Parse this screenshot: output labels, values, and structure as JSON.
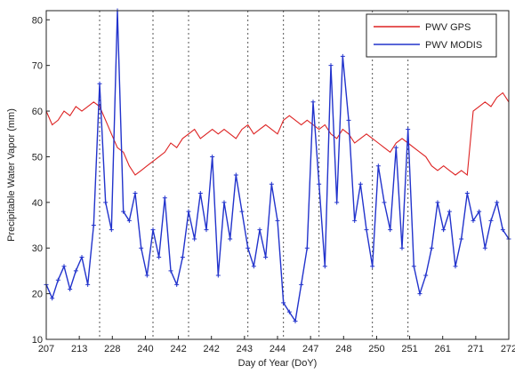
{
  "chart_data": {
    "type": "line",
    "xlabel": "Day of Year (DoY)",
    "ylabel": "Precipitable Water Vapor (mm)",
    "ylim": [
      10,
      82
    ],
    "xlim": [
      200,
      278
    ],
    "yticks": [
      10,
      20,
      30,
      40,
      50,
      60,
      70,
      80
    ],
    "ytick_labels": [
      "10",
      "20",
      "30",
      "40",
      "50",
      "60",
      "70",
      "80"
    ],
    "xticks": [
      200,
      209,
      218,
      224,
      234,
      240,
      246,
      255,
      261,
      270,
      275,
      278
    ],
    "xtick_labels": [
      "207",
      "213",
      "228",
      "240",
      "242",
      "242",
      "243",
      "244",
      "247",
      "248",
      "250",
      "251",
      "261",
      "271",
      "272"
    ],
    "xtick_label_positions": [
      200,
      209,
      218,
      224,
      228,
      234,
      240,
      246,
      255,
      261,
      265,
      270,
      275,
      279,
      285
    ],
    "vlines": [
      209,
      218,
      224,
      234,
      240,
      246,
      255,
      261
    ],
    "grid": "vertical-dotted",
    "legend": {
      "placement": "top-right",
      "entries": [
        {
          "label": "PWV GPS",
          "color": "#dd2222"
        },
        {
          "label": "PWV MODIS",
          "color": "#2233cc"
        }
      ]
    },
    "series": [
      {
        "name": "PWV GPS",
        "color": "#dd2222",
        "x": [
          200,
          201,
          202,
          203,
          204,
          205,
          206,
          207,
          208,
          209,
          210,
          211,
          212,
          213,
          214,
          215,
          216,
          217,
          218,
          219,
          220,
          221,
          222,
          223,
          224,
          225,
          226,
          227,
          228,
          229,
          230,
          231,
          232,
          233,
          234,
          235,
          236,
          237,
          238,
          239,
          240,
          241,
          242,
          243,
          244,
          245,
          246,
          247,
          248,
          249,
          250,
          251,
          252,
          253,
          254,
          255,
          256,
          257,
          258,
          259,
          260,
          261,
          262,
          263,
          264,
          265,
          266,
          267,
          268,
          269,
          270,
          271,
          272,
          273,
          274,
          275,
          276,
          277,
          278
        ],
        "y": [
          60,
          57,
          58,
          60,
          59,
          61,
          60,
          61,
          62,
          61,
          58,
          55,
          52,
          51,
          48,
          46,
          47,
          48,
          49,
          50,
          51,
          53,
          52,
          54,
          55,
          56,
          54,
          55,
          56,
          55,
          56,
          55,
          54,
          56,
          57,
          55,
          56,
          57,
          56,
          55,
          58,
          59,
          58,
          57,
          58,
          57,
          56,
          57,
          55,
          54,
          56,
          55,
          53,
          54,
          55,
          54,
          53,
          52,
          51,
          53,
          54,
          53,
          52,
          51,
          50,
          48,
          47,
          48,
          47,
          46,
          47,
          46,
          60,
          61,
          62,
          61,
          63,
          64,
          62
        ]
      },
      {
        "name": "PWV MODIS",
        "color": "#2233cc",
        "x": [
          200,
          201,
          202,
          203,
          204,
          205,
          206,
          207,
          208,
          209,
          210,
          211,
          212,
          213,
          214,
          215,
          216,
          217,
          218,
          219,
          220,
          221,
          222,
          223,
          224,
          225,
          226,
          227,
          228,
          229,
          230,
          231,
          232,
          233,
          234,
          235,
          236,
          237,
          238,
          239,
          240,
          241,
          242,
          243,
          244,
          245,
          246,
          247,
          248,
          249,
          250,
          251,
          252,
          253,
          254,
          255,
          256,
          257,
          258,
          259,
          260,
          261,
          262,
          263,
          264,
          265,
          266,
          267,
          268,
          269,
          270,
          271,
          272,
          273,
          274,
          275,
          276,
          277,
          278
        ],
        "y": [
          22,
          19,
          23,
          26,
          21,
          25,
          28,
          22,
          35,
          66,
          40,
          34,
          82,
          38,
          36,
          42,
          30,
          24,
          34,
          28,
          41,
          25,
          22,
          28,
          38,
          32,
          42,
          34,
          50,
          24,
          40,
          32,
          46,
          38,
          30,
          26,
          34,
          28,
          44,
          36,
          18,
          16,
          14,
          22,
          30,
          62,
          44,
          26,
          70,
          40,
          72,
          58,
          36,
          44,
          34,
          26,
          48,
          40,
          34,
          52,
          30,
          56,
          26,
          20,
          24,
          30,
          40,
          34,
          38,
          26,
          32,
          42,
          36,
          38,
          30,
          36,
          40,
          34,
          32
        ]
      }
    ]
  }
}
